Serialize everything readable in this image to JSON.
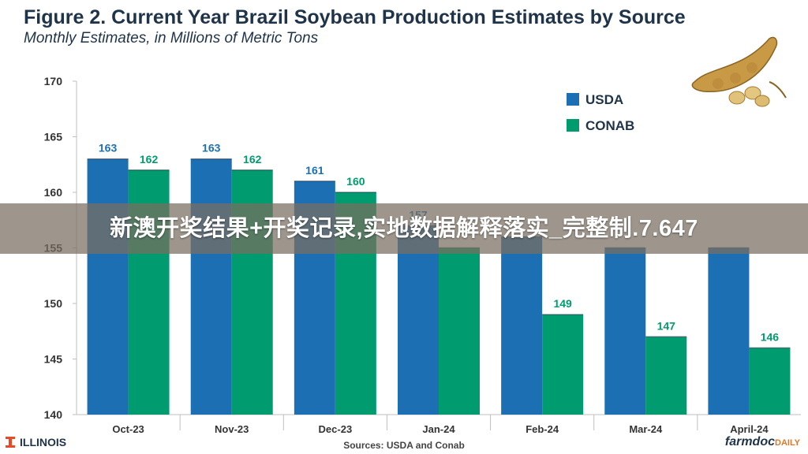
{
  "chart_data": {
    "type": "bar",
    "title": "Figure 2. Current Year Brazil Soybean Production Estimates by Source",
    "subtitle": "Monthly Estimates, in Millions of Metric Tons",
    "categories": [
      "Oct-23",
      "Nov-23",
      "Dec-23",
      "Jan-24",
      "Feb-24",
      "Mar-24",
      "April-24"
    ],
    "series": [
      {
        "name": "USDA",
        "color": "#1d6fb4",
        "values": [
          163,
          163,
          161,
          157,
          156,
          155,
          155
        ],
        "labels": [
          "163",
          "163",
          "161",
          "157",
          "",
          "",
          ""
        ]
      },
      {
        "name": "CONAB",
        "color": "#009b6e",
        "values": [
          162,
          162,
          160,
          155,
          149,
          147,
          146
        ],
        "labels": [
          "162",
          "162",
          "160",
          "",
          "149",
          "147",
          "146"
        ]
      }
    ],
    "yticks": [
      "140",
      "145",
      "150",
      "155",
      "160",
      "165",
      "170"
    ],
    "ylim": [
      140,
      170
    ],
    "grid": false,
    "legend": "top-right",
    "xlabel": "",
    "ylabel": ""
  },
  "overlay_text": "新澳开奖结果+开奖记录,实地数据解释落实_完整制.7.647",
  "footer": {
    "left_logo": "ILLINOIS",
    "source": "Sources: USDA and Conab",
    "right_logo_main": "farmdoc",
    "right_logo_sub": "DAILY"
  },
  "icons": [
    "soybean-pod-icon",
    "illinois-block-i-icon"
  ]
}
